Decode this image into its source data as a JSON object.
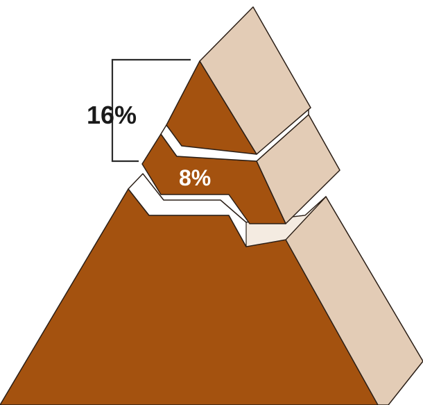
{
  "labels": {
    "top_percent": "16%",
    "middle_percent": "8%"
  },
  "colors": {
    "front_face": "#a4520f",
    "side_face": "#e3ccb6",
    "gap_top": "#ffffff",
    "gap_side": "#f4ebe1",
    "edge": "#2a1e16",
    "bracket": "#2a2a2a",
    "label_dark": "#1a1a1a",
    "label_light": "#ffffff"
  }
}
